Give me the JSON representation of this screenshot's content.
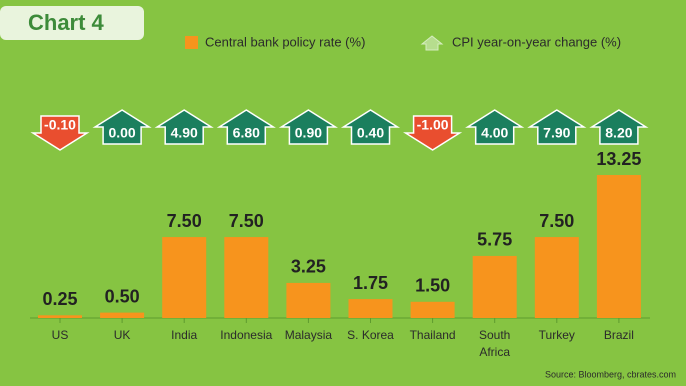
{
  "chart_data": {
    "type": "bar",
    "title": "Chart 4",
    "source": "Source: Bloomberg, cbrates.com",
    "categories": [
      "US",
      "UK",
      "India",
      "Indonesia",
      "Malaysia",
      "S. Korea",
      "Thailand",
      "South Africa",
      "Turkey",
      "Brazil"
    ],
    "series": [
      {
        "name": "Central bank policy rate (%)",
        "color": "#f7941d",
        "values": [
          0.25,
          0.5,
          7.5,
          7.5,
          3.25,
          1.75,
          1.5,
          5.75,
          7.5,
          13.25
        ],
        "value_labels": [
          "0.25",
          "0.50",
          "7.50",
          "7.50",
          "3.25",
          "1.75",
          "1.50",
          "5.75",
          "7.50",
          "13.25"
        ]
      },
      {
        "name": "CPI year-on-year change (%)",
        "color": "#1b7f5e",
        "values": [
          -0.1,
          0,
          4.9,
          6.8,
          0.9,
          0.4,
          -1,
          4,
          7.9,
          8.2
        ],
        "value_labels": [
          "-0.10",
          "0.00",
          "4.90",
          "6.80",
          "0.90",
          "0.40",
          "-1.00",
          "4.00",
          "7.90",
          "8.20"
        ]
      }
    ],
    "negative_color": "#e94e2f"
  }
}
